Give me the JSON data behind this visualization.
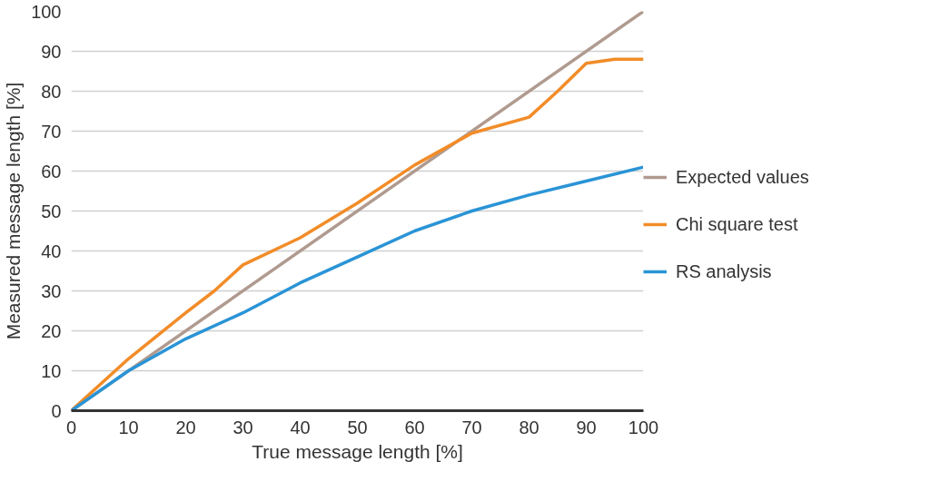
{
  "chart_data": {
    "type": "line",
    "xlabel": "True message length [%]",
    "ylabel": "Measured message length [%]",
    "xlim": [
      0,
      100
    ],
    "ylim": [
      0,
      100
    ],
    "xticks": [
      0,
      10,
      20,
      30,
      40,
      50,
      60,
      70,
      80,
      90,
      100
    ],
    "yticks": [
      0,
      10,
      20,
      30,
      40,
      50,
      60,
      70,
      80,
      90,
      100
    ],
    "grid": "y",
    "legend": "right",
    "marker": "none",
    "line_style": "solid",
    "series": [
      {
        "name": "Expected values",
        "color": "#b09a8f",
        "x": [
          0,
          100
        ],
        "values": [
          0,
          100
        ]
      },
      {
        "name": "Chi square test",
        "color": "#f28c28",
        "x": [
          0,
          10,
          20,
          25,
          30,
          40,
          50,
          60,
          70,
          80,
          85,
          90,
          95,
          100
        ],
        "values": [
          0,
          13,
          24.5,
          30,
          36.5,
          43.3,
          52,
          61.5,
          69.5,
          73.5,
          80,
          87,
          88,
          88
        ]
      },
      {
        "name": "RS analysis",
        "color": "#2a94d6",
        "x": [
          0,
          10,
          20,
          30,
          40,
          50,
          60,
          70,
          80,
          90,
          100
        ],
        "values": [
          0,
          10,
          18,
          24.5,
          32,
          38.5,
          45,
          50,
          54,
          57.5,
          61
        ]
      }
    ]
  }
}
